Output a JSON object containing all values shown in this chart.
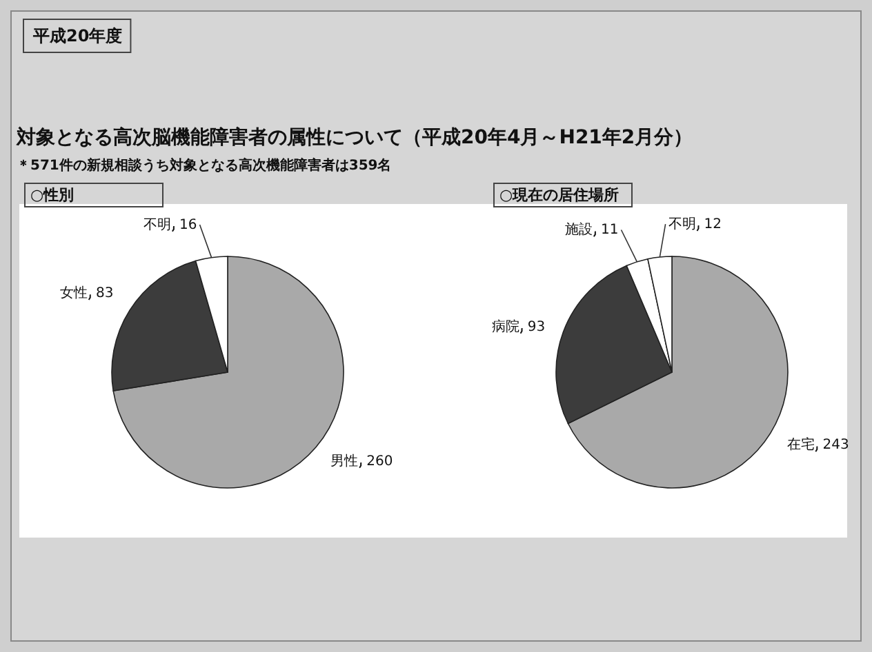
{
  "chart_data": [
    {
      "type": "pie",
      "title": "○性別",
      "annotations": [
        "平成20年度",
        "対象となる高次脳機能障害者の属性について（平成20年4月～H21年2月分）",
        "＊571件の新規相談うち対象となる高次機能障害者は359名"
      ],
      "categories": [
        "男性",
        "女性",
        "不明"
      ],
      "values": [
        260,
        83,
        16
      ],
      "colors": [
        "#a9a9a9",
        "#3c3c3c",
        "#ffffff"
      ],
      "data_labels": true
    },
    {
      "type": "pie",
      "title": "○現在の居住場所",
      "categories": [
        "在宅",
        "病院",
        "施設",
        "不明"
      ],
      "values": [
        243,
        93,
        11,
        12
      ],
      "colors": [
        "#a9a9a9",
        "#3c3c3c",
        "#ffffff",
        "#ffffff"
      ],
      "data_labels": true
    }
  ]
}
